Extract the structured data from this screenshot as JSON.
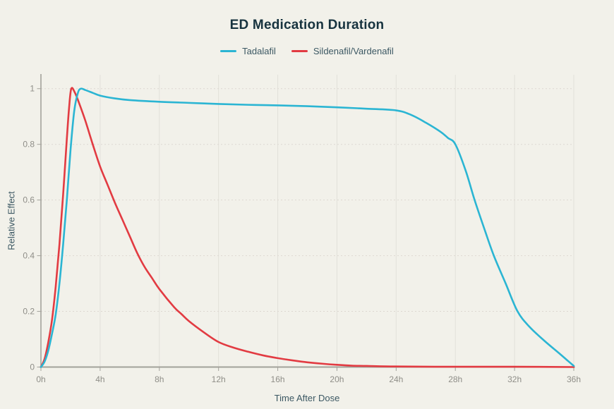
{
  "chart_data": {
    "type": "line",
    "title": "ED Medication Duration",
    "xlabel": "Time After Dose",
    "ylabel": "Relative Effect",
    "xlim": [
      0,
      36
    ],
    "ylim": [
      0,
      1.05
    ],
    "grid": true,
    "legend_position": "top",
    "background_color": "#f2f1ea",
    "x_ticks": [
      {
        "value": 0,
        "label": "0h"
      },
      {
        "value": 4,
        "label": "4h"
      },
      {
        "value": 8,
        "label": "8h"
      },
      {
        "value": 12,
        "label": "12h"
      },
      {
        "value": 16,
        "label": "16h"
      },
      {
        "value": 20,
        "label": "20h"
      },
      {
        "value": 24,
        "label": "24h"
      },
      {
        "value": 28,
        "label": "28h"
      },
      {
        "value": 32,
        "label": "32h"
      },
      {
        "value": 36,
        "label": "36h"
      }
    ],
    "y_ticks": [
      {
        "value": 0,
        "label": "0"
      },
      {
        "value": 0.2,
        "label": "0.2"
      },
      {
        "value": 0.4,
        "label": "0.4"
      },
      {
        "value": 0.6,
        "label": "0.6"
      },
      {
        "value": 0.8,
        "label": "0.8"
      },
      {
        "value": 1,
        "label": "1"
      }
    ],
    "series": [
      {
        "name": "Tadalafil",
        "color": "#2bb5d3",
        "points": [
          [
            0,
            0
          ],
          [
            0.25,
            0.02
          ],
          [
            0.5,
            0.06
          ],
          [
            0.75,
            0.12
          ],
          [
            1,
            0.19
          ],
          [
            1.25,
            0.3
          ],
          [
            1.5,
            0.44
          ],
          [
            1.75,
            0.6
          ],
          [
            2,
            0.78
          ],
          [
            2.25,
            0.92
          ],
          [
            2.5,
            0.985
          ],
          [
            2.7,
            1
          ],
          [
            3,
            0.995
          ],
          [
            3.5,
            0.985
          ],
          [
            4,
            0.975
          ],
          [
            5,
            0.965
          ],
          [
            6,
            0.959
          ],
          [
            8,
            0.953
          ],
          [
            10,
            0.949
          ],
          [
            12,
            0.945
          ],
          [
            14,
            0.942
          ],
          [
            16,
            0.94
          ],
          [
            18,
            0.937
          ],
          [
            20,
            0.933
          ],
          [
            22,
            0.928
          ],
          [
            24,
            0.922
          ],
          [
            25,
            0.906
          ],
          [
            26,
            0.878
          ],
          [
            27,
            0.845
          ],
          [
            27.5,
            0.823
          ],
          [
            28,
            0.8
          ],
          [
            28.7,
            0.705
          ],
          [
            29.3,
            0.6
          ],
          [
            30,
            0.49
          ],
          [
            30.6,
            0.4
          ],
          [
            31.4,
            0.3
          ],
          [
            32.2,
            0.2
          ],
          [
            33,
            0.145
          ],
          [
            34,
            0.095
          ],
          [
            35,
            0.05
          ],
          [
            35.5,
            0.027
          ],
          [
            36,
            0.004
          ]
        ]
      },
      {
        "name": "Sildenafil/Vardenafil",
        "color": "#e23b42",
        "points": [
          [
            0,
            0
          ],
          [
            0.25,
            0.03
          ],
          [
            0.5,
            0.09
          ],
          [
            0.75,
            0.17
          ],
          [
            1,
            0.29
          ],
          [
            1.25,
            0.44
          ],
          [
            1.5,
            0.62
          ],
          [
            1.75,
            0.82
          ],
          [
            1.9,
            0.93
          ],
          [
            2.05,
            1
          ],
          [
            2.3,
            0.985
          ],
          [
            2.6,
            0.945
          ],
          [
            3,
            0.885
          ],
          [
            3.5,
            0.8
          ],
          [
            4,
            0.72
          ],
          [
            4.5,
            0.655
          ],
          [
            5,
            0.59
          ],
          [
            5.5,
            0.53
          ],
          [
            6,
            0.47
          ],
          [
            6.5,
            0.41
          ],
          [
            7,
            0.36
          ],
          [
            7.5,
            0.32
          ],
          [
            8,
            0.28
          ],
          [
            9,
            0.215
          ],
          [
            9.5,
            0.19
          ],
          [
            10,
            0.165
          ],
          [
            11,
            0.125
          ],
          [
            12,
            0.09
          ],
          [
            13,
            0.07
          ],
          [
            14,
            0.055
          ],
          [
            15,
            0.042
          ],
          [
            16,
            0.032
          ],
          [
            17,
            0.024
          ],
          [
            18,
            0.017
          ],
          [
            19,
            0.012
          ],
          [
            20,
            0.008
          ],
          [
            21,
            0.005
          ],
          [
            22,
            0.004
          ],
          [
            24,
            0.002
          ],
          [
            28,
            0.001
          ],
          [
            32,
            0.001
          ],
          [
            36,
            0
          ]
        ]
      }
    ]
  },
  "colors": {
    "title": "#17333f",
    "axis_title": "#3c5863",
    "tick_label": "#8f8e88",
    "axis_line": "#a3a29b",
    "grid_vertical": "#e2e1da",
    "grid_horizontal": "#ddd8d1"
  }
}
